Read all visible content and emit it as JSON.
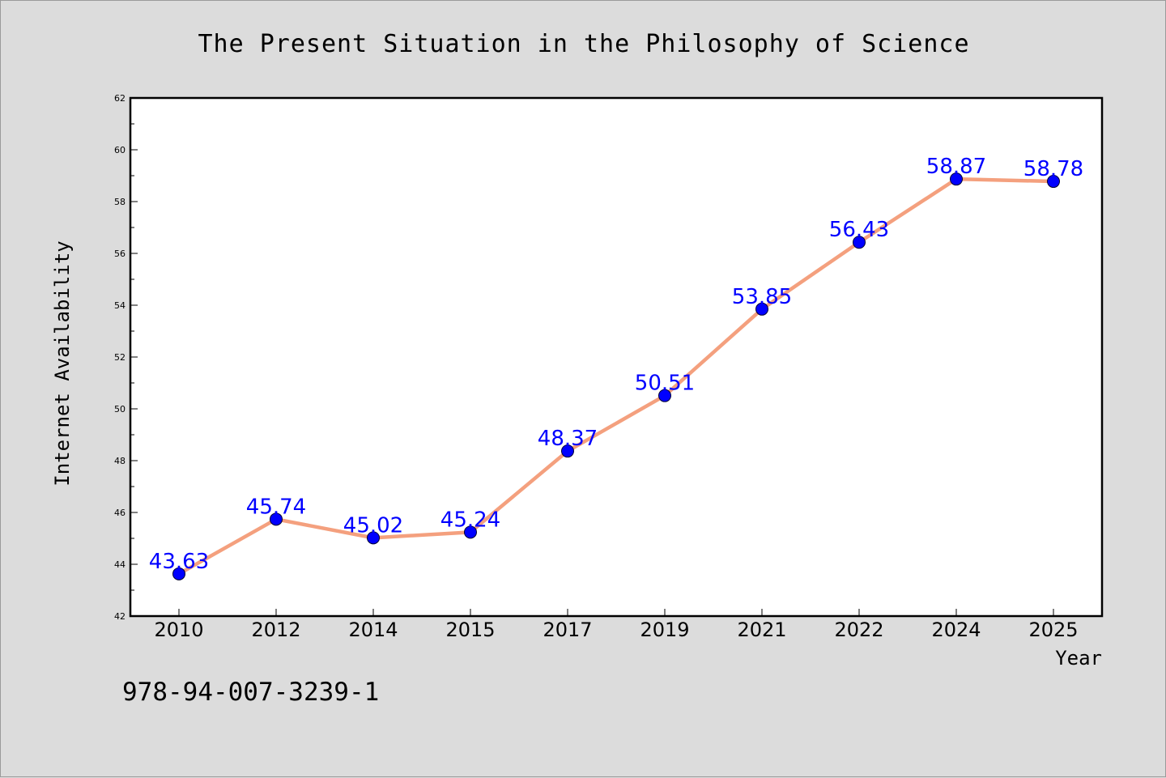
{
  "colors": {
    "background": "#dcdcdc",
    "plot_background": "#ffffff",
    "line": "#f4a07e",
    "marker": "#0000ff",
    "data_label": "#0000ff"
  },
  "footer_text": "978-94-007-3239-1",
  "chart_data": {
    "type": "line",
    "title": "The Present Situation in the Philosophy of Science",
    "xlabel": "Year",
    "ylabel": "Internet Availability",
    "categories": [
      "2010",
      "2012",
      "2014",
      "2015",
      "2017",
      "2019",
      "2021",
      "2022",
      "2024",
      "2025"
    ],
    "series": [
      {
        "values": [
          43.63,
          45.74,
          45.02,
          45.24,
          48.37,
          50.51,
          53.85,
          56.43,
          58.87,
          58.78
        ],
        "labels": [
          "43.63",
          "45.74",
          "45.02",
          "45.24",
          "48.37",
          "50.51",
          "53.85",
          "56.43",
          "58.87",
          "58.78"
        ]
      }
    ],
    "ylim": [
      42,
      62
    ],
    "yticks": [
      "42",
      "44",
      "46",
      "48",
      "50",
      "52",
      "54",
      "56",
      "58",
      "60",
      "62"
    ],
    "grid": false,
    "legend": "none"
  }
}
